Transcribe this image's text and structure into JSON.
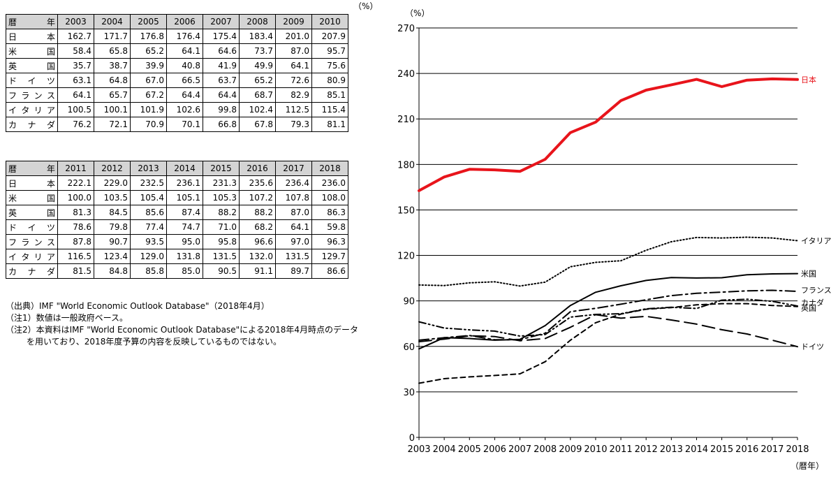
{
  "table_unit": "（%）",
  "table1": {
    "corner_left": "暦",
    "corner_right": "年",
    "years": [
      "2003",
      "2004",
      "2005",
      "2006",
      "2007",
      "2008",
      "2009",
      "2010"
    ],
    "rows": [
      {
        "country_chars": [
          "日",
          "本"
        ],
        "values": [
          "162.7",
          "171.7",
          "176.8",
          "176.4",
          "175.4",
          "183.4",
          "201.0",
          "207.9"
        ]
      },
      {
        "country_chars": [
          "米",
          "国"
        ],
        "values": [
          "58.4",
          "65.8",
          "65.2",
          "64.1",
          "64.6",
          "73.7",
          "87.0",
          "95.7"
        ]
      },
      {
        "country_chars": [
          "英",
          "国"
        ],
        "values": [
          "35.7",
          "38.7",
          "39.9",
          "40.8",
          "41.9",
          "49.9",
          "64.1",
          "75.6"
        ]
      },
      {
        "country_chars": [
          "ド",
          "イ",
          "ツ"
        ],
        "values": [
          "63.1",
          "64.8",
          "67.0",
          "66.5",
          "63.7",
          "65.2",
          "72.6",
          "80.9"
        ]
      },
      {
        "country_chars": [
          "フ",
          "ラ",
          "ン",
          "ス"
        ],
        "values": [
          "64.1",
          "65.7",
          "67.2",
          "64.4",
          "64.4",
          "68.7",
          "82.9",
          "85.1"
        ]
      },
      {
        "country_chars": [
          "イ",
          "タ",
          "リ",
          "ア"
        ],
        "values": [
          "100.5",
          "100.1",
          "101.9",
          "102.6",
          "99.8",
          "102.4",
          "112.5",
          "115.4"
        ]
      },
      {
        "country_chars": [
          "カ",
          "ナ",
          "ダ"
        ],
        "values": [
          "76.2",
          "72.1",
          "70.9",
          "70.1",
          "66.8",
          "67.8",
          "79.3",
          "81.1"
        ]
      }
    ]
  },
  "table2": {
    "corner_left": "暦",
    "corner_right": "年",
    "years": [
      "2011",
      "2012",
      "2013",
      "2014",
      "2015",
      "2016",
      "2017",
      "2018"
    ],
    "rows": [
      {
        "country_chars": [
          "日",
          "本"
        ],
        "values": [
          "222.1",
          "229.0",
          "232.5",
          "236.1",
          "231.3",
          "235.6",
          "236.4",
          "236.0"
        ]
      },
      {
        "country_chars": [
          "米",
          "国"
        ],
        "values": [
          "100.0",
          "103.5",
          "105.4",
          "105.1",
          "105.3",
          "107.2",
          "107.8",
          "108.0"
        ]
      },
      {
        "country_chars": [
          "英",
          "国"
        ],
        "values": [
          "81.3",
          "84.5",
          "85.6",
          "87.4",
          "88.2",
          "88.2",
          "87.0",
          "86.3"
        ]
      },
      {
        "country_chars": [
          "ド",
          "イ",
          "ツ"
        ],
        "values": [
          "78.6",
          "79.8",
          "77.4",
          "74.7",
          "71.0",
          "68.2",
          "64.1",
          "59.8"
        ]
      },
      {
        "country_chars": [
          "フ",
          "ラ",
          "ン",
          "ス"
        ],
        "values": [
          "87.8",
          "90.7",
          "93.5",
          "95.0",
          "95.8",
          "96.6",
          "97.0",
          "96.3"
        ]
      },
      {
        "country_chars": [
          "イ",
          "タ",
          "リ",
          "ア"
        ],
        "values": [
          "116.5",
          "123.4",
          "129.0",
          "131.8",
          "131.5",
          "132.0",
          "131.5",
          "129.7"
        ]
      },
      {
        "country_chars": [
          "カ",
          "ナ",
          "ダ"
        ],
        "values": [
          "81.5",
          "84.8",
          "85.8",
          "85.0",
          "90.5",
          "91.1",
          "89.7",
          "86.6"
        ]
      }
    ]
  },
  "notes": [
    "（出典）IMF \"World Economic Outlook Database\"（2018年4月）",
    "（注1）数値は一般政府ベース。",
    "（注2）本資料はIMF \"World Economic Outlook Database\"による2018年4月時点のデータ",
    "を用いており、2018年度予算の内容を反映しているものではない。"
  ],
  "chart_data": {
    "type": "line",
    "title": "",
    "ylabel": "（%）",
    "xlabel": "（暦年）",
    "ylim": [
      0,
      270
    ],
    "yticks": [
      0,
      30,
      60,
      90,
      120,
      150,
      180,
      210,
      240,
      270
    ],
    "grid": true,
    "x": [
      2003,
      2004,
      2005,
      2006,
      2007,
      2008,
      2009,
      2010,
      2011,
      2012,
      2013,
      2014,
      2015,
      2016,
      2017,
      2018
    ],
    "series": [
      {
        "name": "日本",
        "color": "#e8141b",
        "style": "solid-thick",
        "values": [
          162.7,
          171.7,
          176.8,
          176.4,
          175.4,
          183.4,
          201.0,
          207.9,
          222.1,
          229.0,
          232.5,
          236.1,
          231.3,
          235.6,
          236.4,
          236.0
        ]
      },
      {
        "name": "イタリア",
        "color": "#000000",
        "style": "dotted",
        "values": [
          100.5,
          100.1,
          101.9,
          102.6,
          99.8,
          102.4,
          112.5,
          115.4,
          116.5,
          123.4,
          129.0,
          131.8,
          131.5,
          132.0,
          131.5,
          129.7
        ]
      },
      {
        "name": "米国",
        "color": "#000000",
        "style": "solid",
        "values": [
          58.4,
          65.8,
          65.2,
          64.1,
          64.6,
          73.7,
          87.0,
          95.7,
          100.0,
          103.5,
          105.4,
          105.1,
          105.3,
          107.2,
          107.8,
          108.0
        ]
      },
      {
        "name": "フランス",
        "color": "#000000",
        "style": "dashdot",
        "values": [
          64.1,
          65.7,
          67.2,
          64.4,
          64.4,
          68.7,
          82.9,
          85.1,
          87.8,
          90.7,
          93.5,
          95.0,
          95.8,
          96.6,
          97.0,
          96.3
        ]
      },
      {
        "name": "カナダ",
        "color": "#000000",
        "style": "dashdotdot",
        "values": [
          76.2,
          72.1,
          70.9,
          70.1,
          66.8,
          67.8,
          79.3,
          81.1,
          81.5,
          84.8,
          85.8,
          85.0,
          90.5,
          91.1,
          89.7,
          86.6
        ]
      },
      {
        "name": "英国",
        "color": "#000000",
        "style": "shortdash",
        "values": [
          35.7,
          38.7,
          39.9,
          40.8,
          41.9,
          49.9,
          64.1,
          75.6,
          81.3,
          84.5,
          85.6,
          87.4,
          88.2,
          88.2,
          87.0,
          86.3
        ]
      },
      {
        "name": "ドイツ",
        "color": "#000000",
        "style": "longdash",
        "values": [
          63.1,
          64.8,
          67.0,
          66.5,
          63.7,
          65.2,
          72.6,
          80.9,
          78.6,
          79.8,
          77.4,
          74.7,
          71.0,
          68.2,
          64.1,
          59.8
        ]
      }
    ]
  }
}
